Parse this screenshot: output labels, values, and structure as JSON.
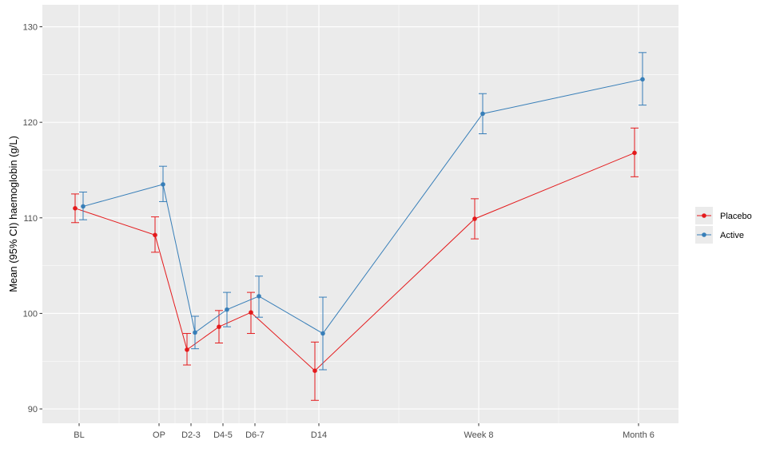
{
  "chart_data": {
    "type": "line",
    "ylabel": "Mean (95% CI) haemoglobin (g/L)",
    "ylim": [
      88.5,
      132.3
    ],
    "yticks": [
      90,
      100,
      110,
      120,
      130
    ],
    "x_positions": [
      0,
      5,
      7,
      9,
      11,
      15,
      25,
      35
    ],
    "categories": [
      "BL",
      "OP",
      "D2-3",
      "D4-5",
      "D6-7",
      "D14",
      "Week 8",
      "Month 6"
    ],
    "xlim": [
      -2.3,
      37.5
    ],
    "grid": true,
    "legend_position": "right",
    "series": [
      {
        "name": "Placebo",
        "color": "#E41A1C",
        "values": [
          111.0,
          108.2,
          96.2,
          98.6,
          100.1,
          94.0,
          109.9,
          116.8
        ],
        "lower": [
          109.5,
          106.4,
          94.6,
          96.9,
          97.9,
          90.9,
          107.8,
          114.3
        ],
        "upper": [
          112.5,
          110.1,
          97.9,
          100.3,
          102.2,
          97.0,
          112.0,
          119.4
        ]
      },
      {
        "name": "Active",
        "color": "#377EB8",
        "values": [
          111.2,
          113.5,
          98.0,
          100.4,
          101.8,
          97.9,
          120.9,
          124.5
        ],
        "lower": [
          109.8,
          111.7,
          96.3,
          98.6,
          99.6,
          94.1,
          118.8,
          121.8
        ],
        "upper": [
          112.7,
          115.4,
          99.7,
          102.2,
          103.9,
          101.7,
          123.0,
          127.3
        ]
      }
    ]
  }
}
